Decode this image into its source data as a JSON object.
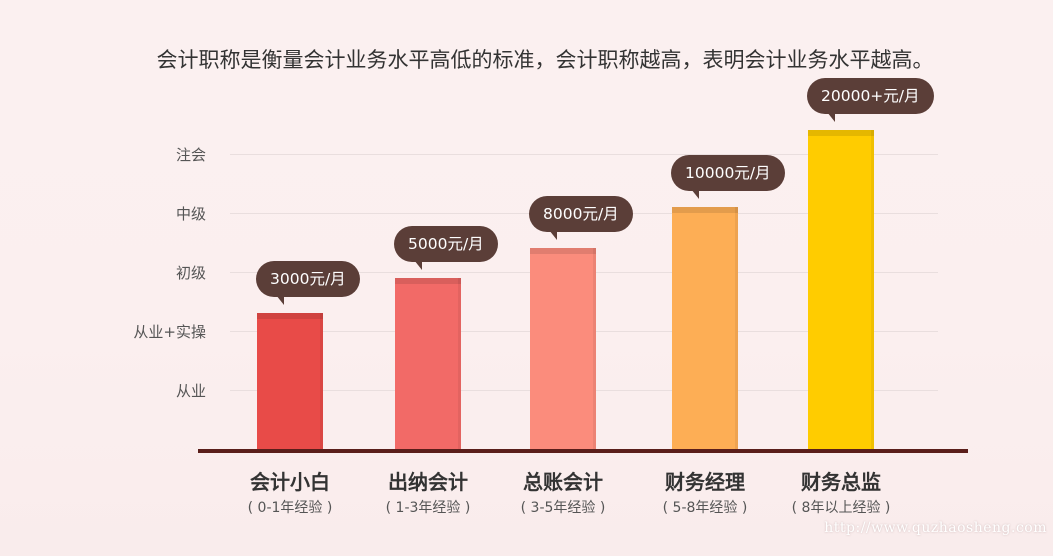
{
  "title": "会计职称是衡量会计业务水平高低的标准，会计职称越高，表明会计业务水平越高。",
  "watermark": "http://www.quzhaosheng.com",
  "chart_data": {
    "type": "bar",
    "title": "会计职称是衡量会计业务水平高低的标准，会计职称越高，表明会计业务水平越高。",
    "yticks": [
      "从业",
      "从业+实操",
      "初级",
      "中级",
      "注会"
    ],
    "categories": [
      "会计小白",
      "出纳会计",
      "总账会计",
      "财务经理",
      "财务总监"
    ],
    "subtitles": [
      "( 0-1年经验 )",
      "( 1-3年经验 )",
      "( 3-5年经验 )",
      "( 5-8年经验 )",
      "( 8年以上经验 )"
    ],
    "values": [
      3000,
      5000,
      8000,
      10000,
      20000
    ],
    "value_labels": [
      "3000元/月",
      "5000元/月",
      "8000元/月",
      "10000元/月",
      "20000+元/月"
    ],
    "level_position": [
      2.3,
      2.9,
      3.4,
      4.1,
      5.4
    ],
    "colors": [
      "#e84b48",
      "#f26a67",
      "#fb8c7c",
      "#fdae55",
      "#ffcc00"
    ],
    "grid": true
  }
}
